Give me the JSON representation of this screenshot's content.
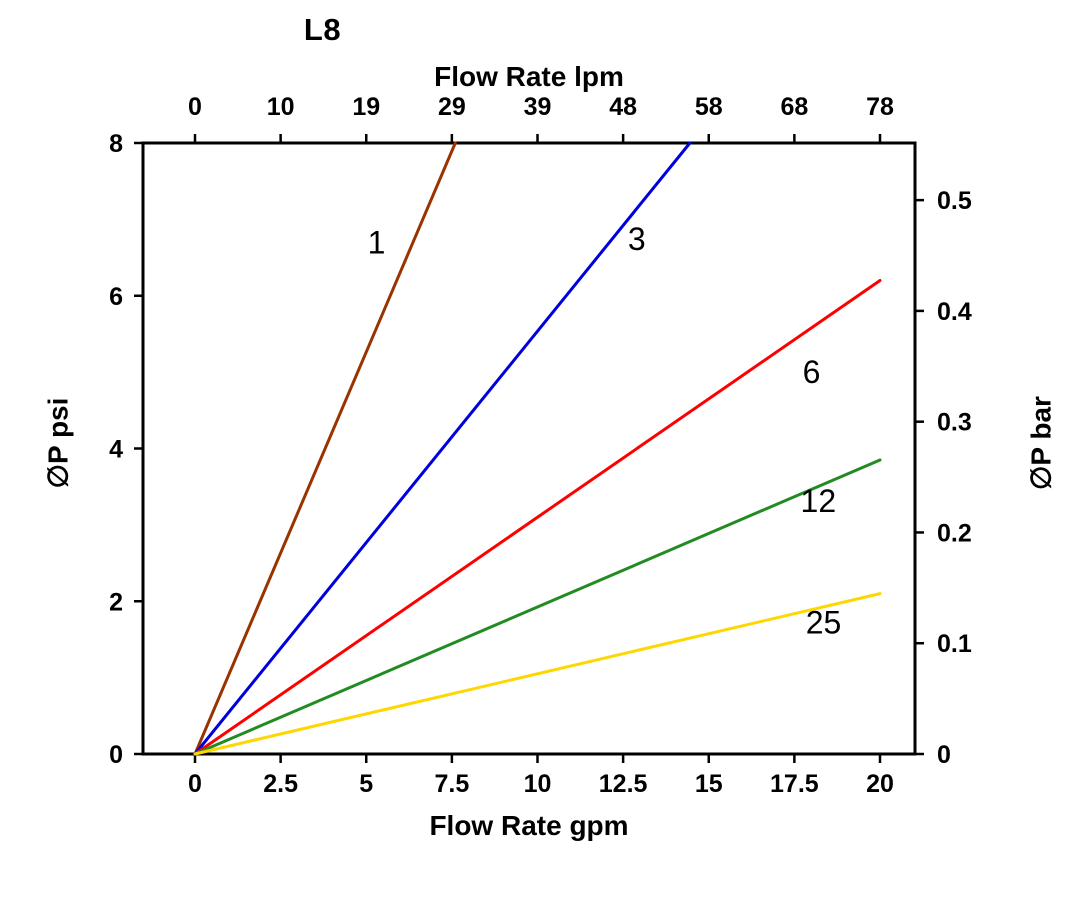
{
  "title": "L8",
  "chart_data": {
    "type": "line",
    "title": "L8",
    "x_bottom": {
      "label": "Flow Rate gpm",
      "range": [
        0,
        20
      ],
      "ticks": [
        0,
        2.5,
        5,
        7.5,
        10,
        12.5,
        15,
        17.5,
        20
      ],
      "tick_labels": [
        "0",
        "2.5",
        "5",
        "7.5",
        "10",
        "12.5",
        "15",
        "17.5",
        "20"
      ]
    },
    "x_top": {
      "label": "Flow Rate lpm",
      "tick_labels": [
        "0",
        "10",
        "19",
        "29",
        "39",
        "48",
        "58",
        "68",
        "78"
      ]
    },
    "y_left": {
      "label": "∅P psi",
      "range": [
        0,
        8
      ],
      "ticks": [
        0,
        2,
        4,
        6,
        8
      ],
      "tick_labels": [
        "0",
        "2",
        "4",
        "6",
        "8"
      ]
    },
    "y_right": {
      "label": "∅P bar",
      "ticks": [
        0,
        0.1,
        0.2,
        0.3,
        0.4,
        0.5
      ],
      "tick_labels": [
        "0",
        "0.1",
        "0.2",
        "0.3",
        "0.4",
        "0.5"
      ],
      "psi_per_bar": 14.5038
    },
    "grid": false,
    "legend": "inline-labels",
    "axis_color": "#000000",
    "series": [
      {
        "name": "1",
        "color": "#993300",
        "points": [
          [
            0,
            0
          ],
          [
            7.6,
            8
          ]
        ],
        "label_pos": [
          5.3,
          6.55
        ]
      },
      {
        "name": "3",
        "color": "#0000dd",
        "points": [
          [
            0,
            0
          ],
          [
            14.45,
            8
          ]
        ],
        "label_pos": [
          12.9,
          6.6
        ]
      },
      {
        "name": "6",
        "color": "#ff0000",
        "points": [
          [
            0,
            0
          ],
          [
            20,
            6.2
          ]
        ],
        "label_pos": [
          18.0,
          4.86
        ]
      },
      {
        "name": "12",
        "color": "#228b22",
        "points": [
          [
            0,
            0
          ],
          [
            20,
            3.85
          ]
        ],
        "label_pos": [
          18.2,
          3.17
        ]
      },
      {
        "name": "25",
        "color": "#ffd700",
        "points": [
          [
            0,
            0
          ],
          [
            20,
            2.1
          ]
        ],
        "label_pos": [
          18.35,
          1.58
        ]
      }
    ]
  }
}
